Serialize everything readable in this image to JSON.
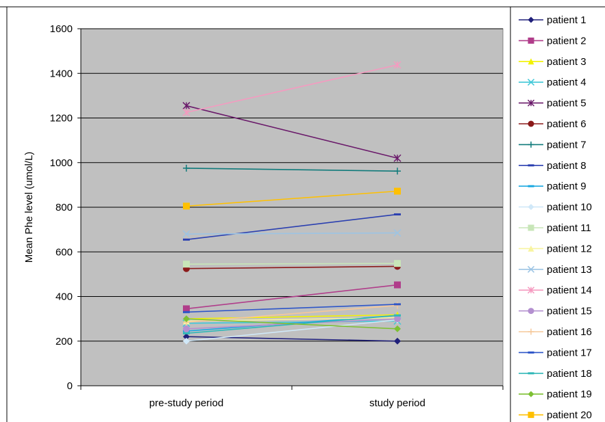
{
  "chart_data": {
    "type": "line",
    "title": "",
    "xlabel": "",
    "ylabel": "Mean Phe level (umol/L)",
    "categories": [
      "pre-study period",
      "study period"
    ],
    "ylim": [
      0,
      1600
    ],
    "yticks": [
      0,
      200,
      400,
      600,
      800,
      1000,
      1200,
      1400,
      1600
    ],
    "grid": "horizontal major gridlines",
    "legend_position": "right",
    "plot_background": "#c0c0c0",
    "series": [
      {
        "name": "patient 1",
        "color": "#1f1f7a",
        "marker": "diamond",
        "values": [
          220,
          200
        ]
      },
      {
        "name": "patient 2",
        "color": "#b03d8a",
        "marker": "square",
        "values": [
          345,
          452
        ]
      },
      {
        "name": "patient 3",
        "color": "#f2f200",
        "marker": "triangle",
        "values": [
          300,
          318
        ]
      },
      {
        "name": "patient 4",
        "color": "#40c8d8",
        "marker": "x",
        "values": [
          280,
          290
        ]
      },
      {
        "name": "patient 5",
        "color": "#6a1a6a",
        "marker": "star",
        "values": [
          1255,
          1020
        ]
      },
      {
        "name": "patient 6",
        "color": "#8b1a1a",
        "marker": "circle",
        "values": [
          525,
          535
        ]
      },
      {
        "name": "patient 7",
        "color": "#0f7a7a",
        "marker": "plus",
        "values": [
          975,
          962
        ]
      },
      {
        "name": "patient 8",
        "color": "#2a3fb0",
        "marker": "dash",
        "values": [
          655,
          768
        ]
      },
      {
        "name": "patient 9",
        "color": "#1aa8e0",
        "marker": "dash",
        "values": [
          245,
          315
        ]
      },
      {
        "name": "patient 10",
        "color": "#d0e8f8",
        "marker": "diamond",
        "values": [
          200,
          295
        ]
      },
      {
        "name": "patient 11",
        "color": "#c8e6b8",
        "marker": "square",
        "values": [
          545,
          548
        ]
      },
      {
        "name": "patient 12",
        "color": "#f8f4a0",
        "marker": "triangle",
        "values": [
          290,
          305
        ]
      },
      {
        "name": "patient 13",
        "color": "#9cc4e4",
        "marker": "x",
        "values": [
          680,
          685
        ]
      },
      {
        "name": "patient 14",
        "color": "#f59ac0",
        "marker": "star",
        "values": [
          1225,
          1438
        ]
      },
      {
        "name": "patient 15",
        "color": "#b490d0",
        "marker": "circle",
        "values": [
          255,
          300
        ]
      },
      {
        "name": "patient 16",
        "color": "#f6c89a",
        "marker": "plus",
        "values": [
          285,
          360
        ]
      },
      {
        "name": "patient 17",
        "color": "#2d55c8",
        "marker": "dash",
        "values": [
          330,
          365
        ]
      },
      {
        "name": "patient 18",
        "color": "#30b8b8",
        "marker": "dash",
        "values": [
          235,
          315
        ]
      },
      {
        "name": "patient 19",
        "color": "#7dc033",
        "marker": "diamond",
        "values": [
          300,
          255
        ]
      },
      {
        "name": "patient 20",
        "color": "#ffc000",
        "marker": "square",
        "values": [
          805,
          872
        ]
      }
    ]
  }
}
